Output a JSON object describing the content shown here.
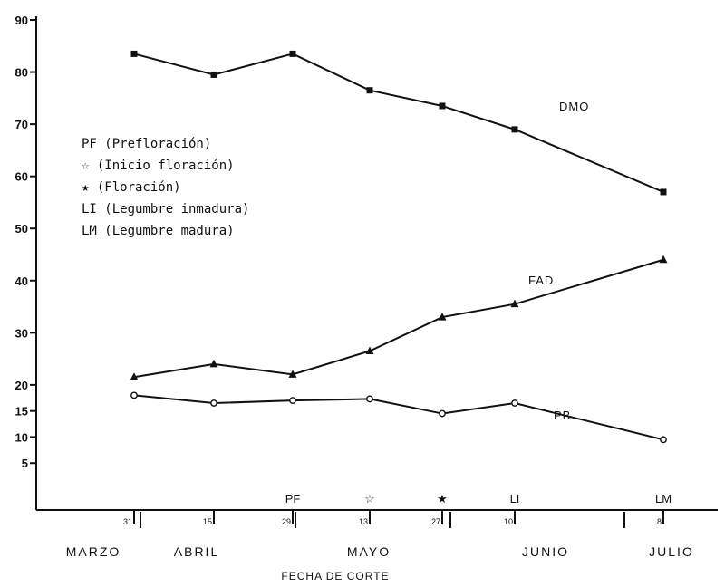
{
  "chart_data": {
    "type": "line",
    "title": "",
    "xlabel": "FECHA DE CORTE",
    "ylabel": "",
    "ylim": [
      0,
      90
    ],
    "yticks": [
      5,
      10,
      15,
      20,
      30,
      40,
      50,
      60,
      70,
      80,
      90
    ],
    "x": [
      "31 Marzo",
      "15 Abril",
      "29 Abril",
      "13 Mayo",
      "27 Mayo",
      "10 Junio",
      "8 Julio"
    ],
    "date_tick_labels": [
      "31",
      "15",
      "29",
      "13",
      "27",
      "10",
      "8"
    ],
    "months": [
      "MARZO",
      "ABRIL",
      "MAYO",
      "JUNIO",
      "JULIO"
    ],
    "series": [
      {
        "name": "DMO",
        "marker": "square",
        "values": [
          83.5,
          79.5,
          83.5,
          76.5,
          73.5,
          69,
          57
        ]
      },
      {
        "name": "FAD",
        "marker": "triangle",
        "values": [
          21.5,
          24,
          22,
          26.5,
          33,
          35.5,
          44
        ]
      },
      {
        "name": "PB",
        "marker": "circle",
        "values": [
          18,
          16.5,
          17,
          17.3,
          14.5,
          16.5,
          9.5
        ]
      }
    ],
    "stage_markers": [
      {
        "label": "PF",
        "symbol": "",
        "at": "29 Abril"
      },
      {
        "label": "",
        "symbol": "☆",
        "at": "13 Mayo"
      },
      {
        "label": "",
        "symbol": "★",
        "at": "27 Mayo"
      },
      {
        "label": "LI",
        "symbol": "",
        "at": "10 Junio"
      },
      {
        "label": "LM",
        "symbol": "",
        "at": "8 Julio"
      }
    ],
    "legend": [
      "PF (Prefloración)",
      "☆ (Inicio floración)",
      "★ (Floración)",
      "LI (Legumbre inmadura)",
      "LM (Legumbre madura)"
    ],
    "legend_position": "upper-left"
  }
}
